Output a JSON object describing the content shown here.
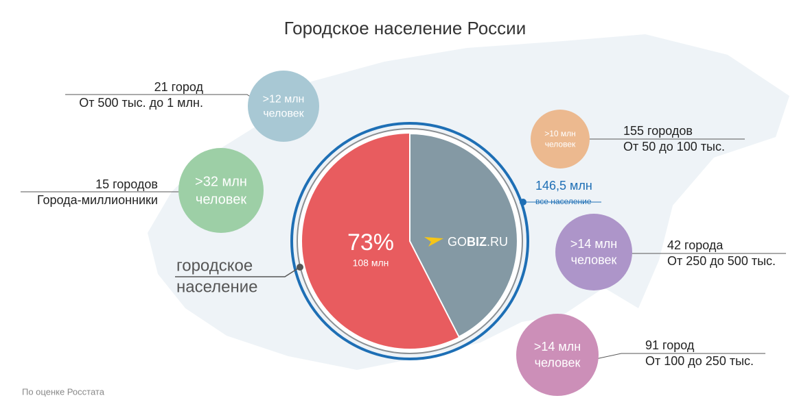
{
  "title": "Городское население России",
  "pie": {
    "percent": "73%",
    "count": "108 млн",
    "logo": [
      "GO",
      "BIZ",
      ".RU"
    ]
  },
  "total": {
    "value": "146,5 млн",
    "label": "все население"
  },
  "urban_label": [
    "городское",
    "население"
  ],
  "bubbles": [
    {
      "amount": ">12 млн",
      "unit": "человек",
      "cities": "21 город",
      "range": "От 500 тыс. до 1 млн."
    },
    {
      "amount": ">32 млн",
      "unit": "человек",
      "cities": "15 городов",
      "range": "Города-миллионники"
    },
    {
      "amount": ">10 млн",
      "unit": "человек",
      "cities": "155 городов",
      "range": "От 50 до 100 тыс."
    },
    {
      "amount": ">14 млн",
      "unit": "человек",
      "cities": "42 города",
      "range": "От 250 до 500 тыс."
    },
    {
      "amount": ">14 млн",
      "unit": "человек",
      "cities": "91 город",
      "range": "От 100 до 250 тыс."
    }
  ],
  "source": "По оценке Росстата"
}
